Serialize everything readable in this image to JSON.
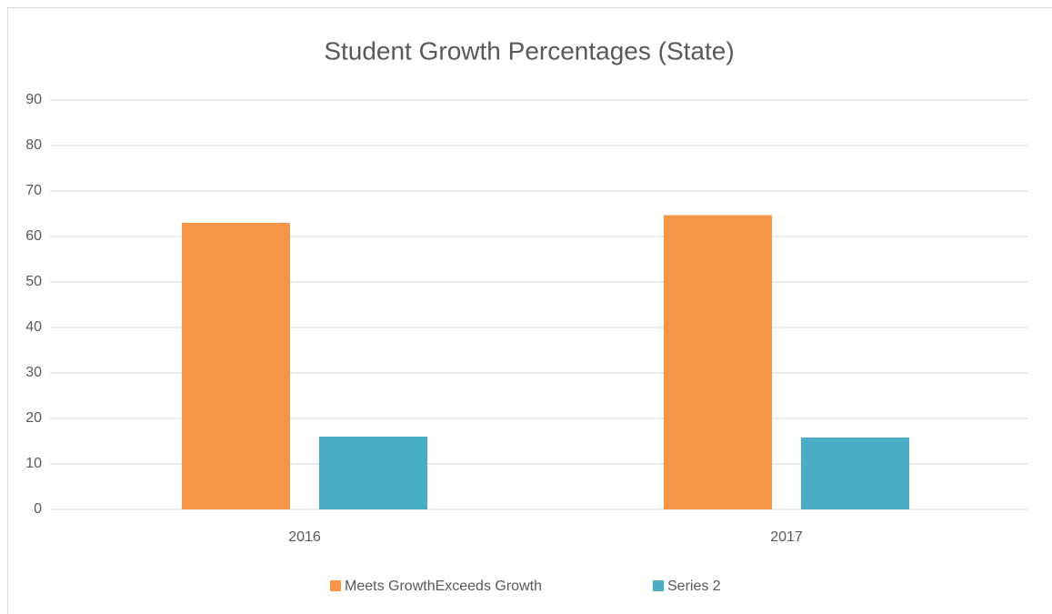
{
  "chart_data": {
    "type": "bar",
    "title": "Student Growth Percentages (State)",
    "categories": [
      "2016",
      "2017"
    ],
    "series": [
      {
        "name": "Meets GrowthExceeds Growth",
        "color": "#f79646",
        "values": [
          63,
          64.7
        ]
      },
      {
        "name": "Series 2",
        "color": "#4bacc6",
        "values": [
          16,
          15.8
        ]
      }
    ],
    "ylim": [
      0,
      90
    ],
    "yticks": [
      0,
      10,
      20,
      30,
      40,
      50,
      60,
      70,
      80,
      90
    ],
    "grid": true,
    "legend": "bottom"
  }
}
